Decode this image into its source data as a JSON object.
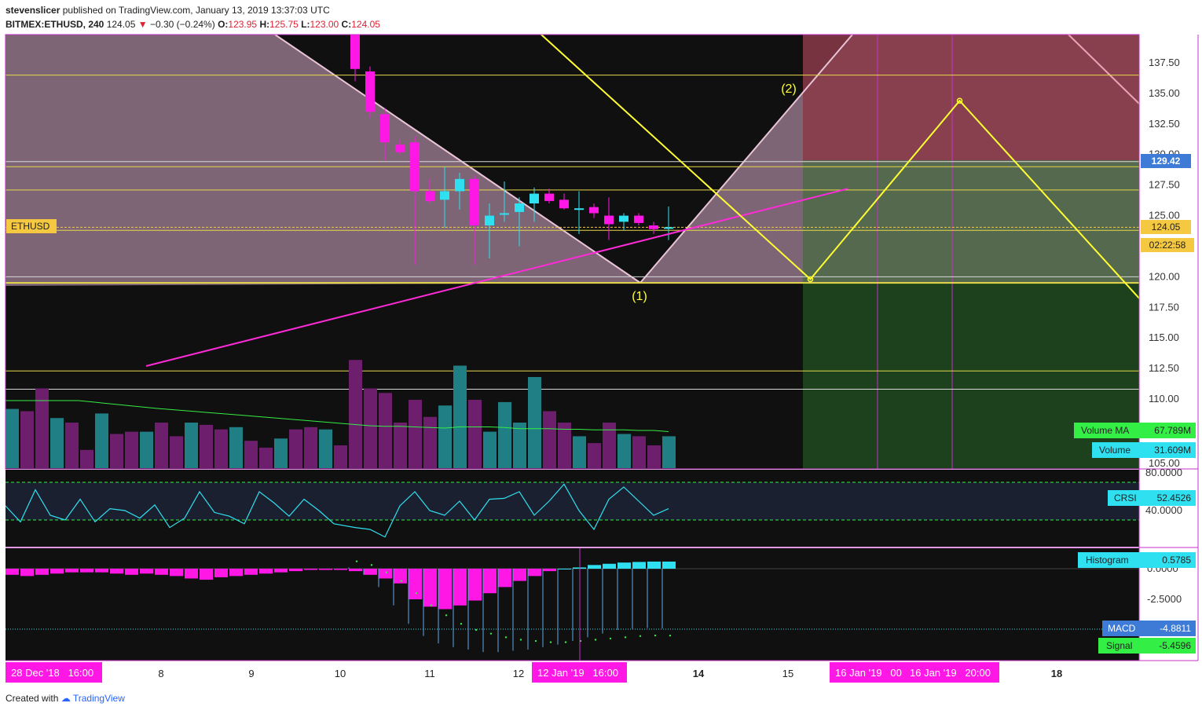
{
  "header": {
    "line1_user": "stevenslicer",
    "line1_rest": "published on TradingView.com, January 13, 2019 13:37:03 UTC",
    "symbol": "BITMEX:ETHUSD, 240",
    "last": "124.05",
    "change": "−0.30 (−0.24%)",
    "o_label": "O:",
    "o": "123.95",
    "h_label": "H:",
    "h": "125.75",
    "l_label": "L:",
    "l": "123.00",
    "c_label": "C:",
    "c": "124.05"
  },
  "footer": {
    "created": "Created with",
    "brand": "TradingView"
  },
  "colors": {
    "up": "#2fe0f0",
    "down": "#ff17e6",
    "fib": "#e6d84a",
    "zigzag": "#ffff33",
    "trend": "#ff2ad8",
    "ma": "#33ee44",
    "frame": "#c630c8"
  },
  "price_axis": {
    "ticks": [
      "137.50",
      "135.00",
      "132.50",
      "130.00",
      "127.50",
      "125.00",
      "122.50",
      "120.00",
      "117.50",
      "115.00",
      "112.50",
      "110.00",
      "105.00"
    ],
    "price_label": "124.05",
    "countdown": "02:22:58",
    "level_label": "129.42",
    "symbol_tag": "ETHUSD"
  },
  "annotations": {
    "wave1": "(1)",
    "wave2": "(2)"
  },
  "time_axis": {
    "left_tag": "28 Dec '18   16:00",
    "ticks": [
      "8",
      "9",
      "10",
      "11",
      "12",
      "14",
      "15",
      "18"
    ],
    "cursor_tag": "12 Jan '19   16:00",
    "tag_a": "16 Jan '19   00",
    "tag_b": "16 Jan '19   20:00"
  },
  "legends": {
    "volume_ma_name": "Volume MA",
    "volume_ma_value": "67.789M",
    "volume_name": "Volume",
    "volume_value": "31.609M",
    "crsi_name": "CRSI",
    "crsi_value": "52.4526",
    "crsi_ticks": [
      "80.0000",
      "40.0000"
    ],
    "hist_name": "Histogram",
    "hist_value": "0.5785",
    "macd_name": "MACD",
    "macd_value": "-4.8811",
    "signal_name": "Signal",
    "signal_value": "-5.4596",
    "macd_ticks": [
      "0.0000",
      "-2.5000"
    ]
  },
  "chart_data": [
    {
      "type": "candlestick",
      "symbol": "BITMEX:ETHUSD",
      "interval": "240",
      "ylim": [
        105,
        139
      ],
      "candles": [
        {
          "o": 141.0,
          "h": 142.0,
          "l": 136.0,
          "c": 137.0
        },
        {
          "o": 136.8,
          "h": 137.2,
          "l": 133.0,
          "c": 133.5
        },
        {
          "o": 133.3,
          "h": 133.8,
          "l": 129.5,
          "c": 131.0
        },
        {
          "o": 130.8,
          "h": 131.2,
          "l": 130.0,
          "c": 130.2
        },
        {
          "o": 131.0,
          "h": 131.5,
          "l": 121.0,
          "c": 127.0
        },
        {
          "o": 127.0,
          "h": 128.0,
          "l": 126.0,
          "c": 126.2
        },
        {
          "o": 126.3,
          "h": 129.0,
          "l": 124.0,
          "c": 127.0
        },
        {
          "o": 127.0,
          "h": 128.5,
          "l": 125.5,
          "c": 128.0
        },
        {
          "o": 128.0,
          "h": 128.3,
          "l": 121.0,
          "c": 124.2
        },
        {
          "o": 124.2,
          "h": 126.0,
          "l": 121.5,
          "c": 125.0
        },
        {
          "o": 125.2,
          "h": 127.8,
          "l": 124.5,
          "c": 125.2
        },
        {
          "o": 125.3,
          "h": 126.5,
          "l": 122.5,
          "c": 126.0
        },
        {
          "o": 126.0,
          "h": 127.3,
          "l": 124.5,
          "c": 126.8
        },
        {
          "o": 126.8,
          "h": 127.2,
          "l": 126.0,
          "c": 126.2
        },
        {
          "o": 126.3,
          "h": 126.8,
          "l": 125.5,
          "c": 125.6
        },
        {
          "o": 125.5,
          "h": 127.0,
          "l": 123.5,
          "c": 125.6
        },
        {
          "o": 125.7,
          "h": 126.0,
          "l": 124.8,
          "c": 125.2
        },
        {
          "o": 125.0,
          "h": 126.5,
          "l": 123.0,
          "c": 124.3
        },
        {
          "o": 124.5,
          "h": 125.2,
          "l": 123.8,
          "c": 125.0
        },
        {
          "o": 125.0,
          "h": 125.2,
          "l": 124.2,
          "c": 124.4
        },
        {
          "o": 124.2,
          "h": 124.5,
          "l": 123.5,
          "c": 123.9
        },
        {
          "o": 123.95,
          "h": 125.75,
          "l": 123.0,
          "c": 124.05
        }
      ],
      "horizontal_levels": [
        136.5,
        129.42,
        129.0,
        127.1,
        124.05,
        123.8,
        120.0,
        119.5,
        112.3,
        110.8
      ],
      "trendline": {
        "from": [
          -14,
          112.7
        ],
        "to": [
          33,
          127.2
        ]
      },
      "wave_points": {
        "start": [
          10.5,
          142.0
        ],
        "wave1": [
          30.5,
          119.8
        ],
        "wave2": [
          40.5,
          134.4
        ],
        "end": [
          63.5,
          103.5
        ]
      }
    },
    {
      "type": "bar",
      "title": "Volume",
      "values": [
        95,
        70,
        66,
        40,
        60,
        45,
        55,
        90,
        60,
        32,
        58,
        40,
        80,
        50,
        40,
        28,
        22,
        40,
        30,
        28,
        20,
        28
      ],
      "ma": [
        74,
        72,
        71,
        71,
        70,
        69,
        68,
        70,
        70,
        70,
        69,
        67,
        67,
        67,
        66,
        66,
        65,
        65,
        65,
        64,
        64,
        62
      ]
    },
    {
      "type": "line",
      "title": "CRSI",
      "ylim": [
        20,
        90
      ],
      "series": [
        {
          "name": "CRSI",
          "values": [
            32,
            30,
            22,
            55,
            70,
            50,
            45,
            60,
            40,
            62,
            63,
            70,
            45,
            60,
            78,
            50,
            30,
            62,
            75,
            60,
            45,
            52
          ]
        }
      ]
    },
    {
      "type": "bar",
      "title": "MACD",
      "histogram": [
        -0.2,
        -0.5,
        -0.8,
        -1.2,
        -2.5,
        -3.1,
        -3.3,
        -3.0,
        -2.6,
        -2.0,
        -1.5,
        -1.0,
        -0.6,
        -0.2,
        0.0,
        0.1,
        0.3,
        0.4,
        0.5,
        0.55,
        0.58,
        0.58
      ],
      "macd": [
        0.1,
        -0.5,
        -1.5,
        -3.0,
        -4.5,
        -5.5,
        -6.1,
        -6.4,
        -6.6,
        -6.8,
        -6.8,
        -6.7,
        -6.6,
        -6.4,
        -6.2,
        -5.9,
        -5.6,
        -5.3,
        -5.0,
        -4.9,
        -4.85,
        -4.88
      ],
      "signal": [
        0.6,
        0.3,
        -0.3,
        -1.0,
        -2.0,
        -3.0,
        -3.8,
        -4.5,
        -5.0,
        -5.3,
        -5.6,
        -5.8,
        -5.9,
        -6.0,
        -6.0,
        -5.9,
        -5.8,
        -5.7,
        -5.6,
        -5.5,
        -5.45,
        -5.46
      ]
    }
  ]
}
